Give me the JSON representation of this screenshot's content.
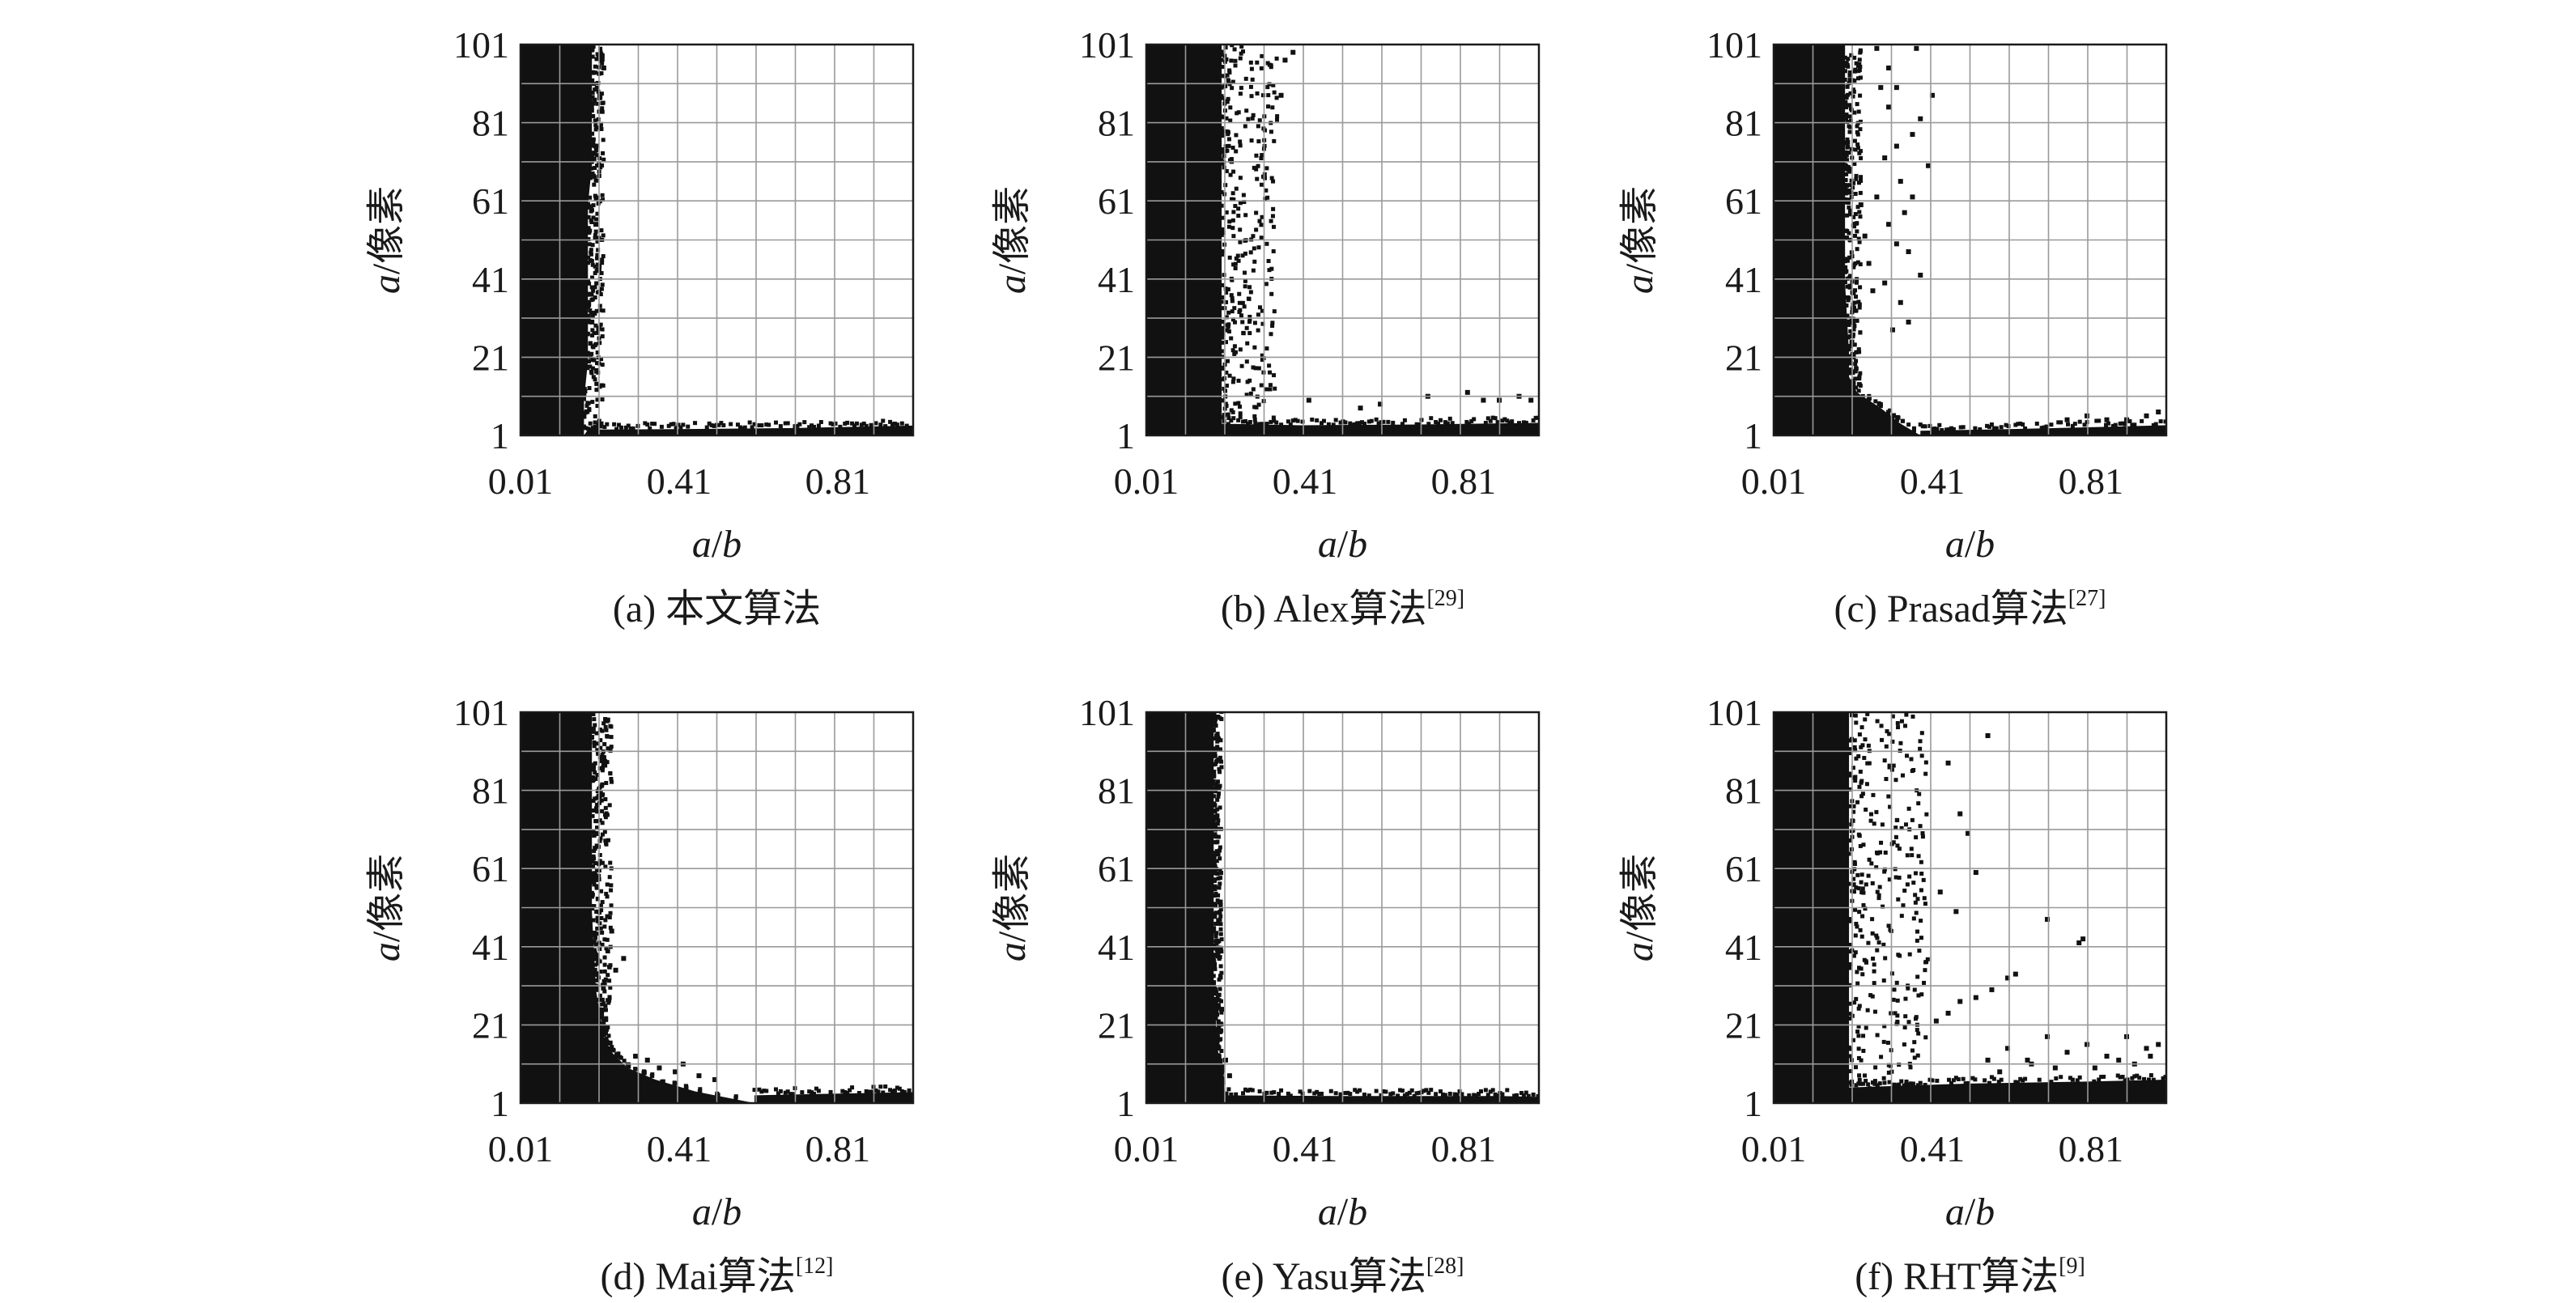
{
  "figure": {
    "colors": {
      "frame": "#1a1a1a",
      "grid": "#9a9a9a",
      "points": "#111111",
      "background": "#ffffff"
    }
  },
  "chart_data": [
    {
      "type": "scatter",
      "panel": "a",
      "caption": "(a) 本文算法",
      "caption_ref": "",
      "xlabel_var": "a",
      "xlabel_rest": "/b",
      "ylabel_var": "a",
      "ylabel_rest": "/像素",
      "xticks": [
        "0.01",
        "0.41",
        "0.81"
      ],
      "yticks": [
        "1",
        "21",
        "41",
        "61",
        "81",
        "101"
      ],
      "xlim": [
        0.01,
        1.0
      ],
      "ylim": [
        1,
        101
      ],
      "grid": true,
      "dense_region": {
        "boundary": [
          [
            1,
            0.17
          ],
          [
            10,
            0.17
          ],
          [
            20,
            0.18
          ],
          [
            30,
            0.18
          ],
          [
            40,
            0.18
          ],
          [
            50,
            0.18
          ],
          [
            60,
            0.18
          ],
          [
            70,
            0.19
          ],
          [
            80,
            0.19
          ],
          [
            90,
            0.19
          ],
          [
            101,
            0.19
          ]
        ],
        "floor": [
          [
            0.18,
            2.5
          ],
          [
            0.4,
            2.6
          ],
          [
            0.7,
            2.9
          ],
          [
            1.0,
            3.5
          ]
        ]
      },
      "scatter_band": {
        "x0": 0.18,
        "x1": 0.22,
        "density": 0.3
      },
      "sparse_points": [
        [
          0.2,
          75
        ],
        [
          0.22,
          95
        ],
        [
          0.2,
          55
        ],
        [
          0.19,
          30
        ],
        [
          0.21,
          88
        ]
      ]
    },
    {
      "type": "scatter",
      "panel": "b",
      "caption": "(b) Alex算法",
      "caption_ref": "[29]",
      "xlabel_var": "a",
      "xlabel_rest": "/b",
      "ylabel_var": "a",
      "ylabel_rest": "/像素",
      "xticks": [
        "0.01",
        "0.41",
        "0.81"
      ],
      "yticks": [
        "1",
        "21",
        "41",
        "61",
        "81",
        "101"
      ],
      "xlim": [
        0.01,
        1.0
      ],
      "ylim": [
        1,
        101
      ],
      "grid": true,
      "dense_region": {
        "boundary": [
          [
            1,
            0.2
          ],
          [
            10,
            0.2
          ],
          [
            20,
            0.2
          ],
          [
            30,
            0.2
          ],
          [
            40,
            0.2
          ],
          [
            50,
            0.2
          ],
          [
            60,
            0.2
          ],
          [
            70,
            0.2
          ],
          [
            80,
            0.2
          ],
          [
            90,
            0.2
          ],
          [
            101,
            0.2
          ]
        ],
        "floor": [
          [
            0.2,
            4
          ],
          [
            0.4,
            3.6
          ],
          [
            0.7,
            3.8
          ],
          [
            1.0,
            4.2
          ]
        ]
      },
      "scatter_band": {
        "x0": 0.2,
        "x1": 0.34,
        "density": 0.45
      },
      "sparse_points": [
        [
          0.42,
          10
        ],
        [
          0.55,
          8
        ],
        [
          0.6,
          9
        ],
        [
          0.72,
          11
        ],
        [
          0.82,
          12
        ],
        [
          0.86,
          10
        ],
        [
          0.9,
          10
        ],
        [
          0.95,
          11
        ],
        [
          0.98,
          10
        ],
        [
          0.36,
          97
        ],
        [
          0.38,
          99
        ],
        [
          0.35,
          88
        ]
      ]
    },
    {
      "type": "scatter",
      "panel": "c",
      "caption": "(c) Prasad算法",
      "caption_ref": "[27]",
      "xlabel_var": "a",
      "xlabel_rest": "/b",
      "ylabel_var": "a",
      "ylabel_rest": "/像素",
      "xticks": [
        "0.01",
        "0.41",
        "0.81"
      ],
      "yticks": [
        "1",
        "21",
        "41",
        "61",
        "81",
        "101"
      ],
      "xlim": [
        0.01,
        1.0
      ],
      "ylim": [
        1,
        101
      ],
      "grid": true,
      "dense_region": {
        "boundary": [
          [
            1,
            0.38
          ],
          [
            4,
            0.33
          ],
          [
            8,
            0.28
          ],
          [
            12,
            0.22
          ],
          [
            16,
            0.2
          ],
          [
            22,
            0.2
          ],
          [
            40,
            0.19
          ],
          [
            60,
            0.19
          ],
          [
            80,
            0.19
          ],
          [
            101,
            0.19
          ]
        ],
        "floor": [
          [
            0.38,
            2.2
          ],
          [
            0.6,
            2.6
          ],
          [
            0.85,
            3.2
          ],
          [
            1.0,
            3.6
          ]
        ]
      },
      "scatter_band": {
        "x0": 0.19,
        "x1": 0.23,
        "density": 0.3
      },
      "sparse_points": [
        [
          0.25,
          45
        ],
        [
          0.27,
          62
        ],
        [
          0.29,
          72
        ],
        [
          0.3,
          55
        ],
        [
          0.3,
          85
        ],
        [
          0.32,
          90
        ],
        [
          0.33,
          35
        ],
        [
          0.35,
          48
        ],
        [
          0.36,
          78
        ],
        [
          0.37,
          100
        ],
        [
          0.33,
          66
        ],
        [
          0.28,
          90
        ],
        [
          0.31,
          28
        ],
        [
          0.34,
          58
        ],
        [
          0.26,
          38
        ],
        [
          0.38,
          82
        ],
        [
          0.4,
          70
        ],
        [
          0.27,
          100
        ],
        [
          0.24,
          52
        ],
        [
          0.29,
          40
        ],
        [
          0.36,
          62
        ],
        [
          0.32,
          75
        ],
        [
          0.3,
          95
        ],
        [
          0.35,
          30
        ],
        [
          0.41,
          88
        ],
        [
          0.23,
          60
        ],
        [
          0.38,
          42
        ],
        [
          0.32,
          50
        ],
        [
          0.8,
          6
        ],
        [
          0.85,
          5
        ],
        [
          0.9,
          5
        ],
        [
          0.95,
          6
        ],
        [
          0.98,
          7
        ],
        [
          0.75,
          5
        ]
      ]
    },
    {
      "type": "scatter",
      "panel": "d",
      "caption": "(d) Mai算法",
      "caption_ref": "[12]",
      "xlabel_var": "a",
      "xlabel_rest": "/b",
      "ylabel_var": "a",
      "ylabel_rest": "/像素",
      "xticks": [
        "0.01",
        "0.41",
        "0.81"
      ],
      "yticks": [
        "1",
        "21",
        "41",
        "61",
        "81",
        "101"
      ],
      "xlim": [
        0.01,
        1.0
      ],
      "ylim": [
        1,
        101
      ],
      "grid": true,
      "dense_region": {
        "boundary": [
          [
            1,
            0.6
          ],
          [
            4,
            0.45
          ],
          [
            7,
            0.35
          ],
          [
            10,
            0.28
          ],
          [
            14,
            0.24
          ],
          [
            18,
            0.22
          ],
          [
            30,
            0.2
          ],
          [
            50,
            0.19
          ],
          [
            70,
            0.19
          ],
          [
            101,
            0.19
          ]
        ],
        "floor": [
          [
            0.6,
            3
          ],
          [
            0.8,
            3.4
          ],
          [
            1.0,
            3.8
          ]
        ]
      },
      "scatter_band": {
        "x0": 0.19,
        "x1": 0.24,
        "density": 0.35
      },
      "sparse_points": [
        [
          0.3,
          13
        ],
        [
          0.33,
          12
        ],
        [
          0.36,
          10
        ],
        [
          0.4,
          9
        ],
        [
          0.23,
          99
        ],
        [
          0.22,
          88
        ],
        [
          0.24,
          45
        ],
        [
          0.25,
          35
        ],
        [
          0.27,
          38
        ],
        [
          0.42,
          11
        ],
        [
          0.46,
          8
        ],
        [
          0.5,
          7
        ]
      ]
    },
    {
      "type": "scatter",
      "panel": "e",
      "caption": "(e) Yasu算法",
      "caption_ref": "[28]",
      "xlabel_var": "a",
      "xlabel_rest": "/b",
      "ylabel_var": "a",
      "ylabel_rest": "/像素",
      "xticks": [
        "0.01",
        "0.41",
        "0.81"
      ],
      "yticks": [
        "1",
        "21",
        "41",
        "61",
        "81",
        "101"
      ],
      "xlim": [
        0.01,
        1.0
      ],
      "ylim": [
        1,
        101
      ],
      "grid": true,
      "dense_region": {
        "boundary": [
          [
            1,
            0.2
          ],
          [
            8,
            0.2
          ],
          [
            15,
            0.19
          ],
          [
            30,
            0.18
          ],
          [
            50,
            0.18
          ],
          [
            70,
            0.18
          ],
          [
            90,
            0.18
          ],
          [
            101,
            0.18
          ]
        ],
        "floor": [
          [
            0.2,
            3
          ],
          [
            0.5,
            2.8
          ],
          [
            0.9,
            2.8
          ],
          [
            1.0,
            2.6
          ]
        ]
      },
      "scatter_band": {
        "x0": 0.17,
        "x1": 0.2,
        "density": 0.3
      },
      "sparse_points": [
        [
          0.21,
          12
        ],
        [
          0.22,
          8
        ],
        [
          0.2,
          25
        ]
      ]
    },
    {
      "type": "scatter",
      "panel": "f",
      "caption": "(f) RHT算法",
      "caption_ref": "[9]",
      "xlabel_var": "a",
      "xlabel_rest": "/b",
      "ylabel_var": "a",
      "ylabel_rest": "/像素",
      "xticks": [
        "0.01",
        "0.41",
        "0.81"
      ],
      "yticks": [
        "1",
        "21",
        "41",
        "61",
        "81",
        "101"
      ],
      "xlim": [
        0.01,
        1.0
      ],
      "ylim": [
        1,
        101
      ],
      "grid": true,
      "dense_region": {
        "boundary": [
          [
            1,
            0.2
          ],
          [
            10,
            0.2
          ],
          [
            20,
            0.2
          ],
          [
            40,
            0.2
          ],
          [
            60,
            0.2
          ],
          [
            80,
            0.2
          ],
          [
            101,
            0.2
          ]
        ],
        "floor": [
          [
            0.2,
            5
          ],
          [
            0.5,
            6
          ],
          [
            0.8,
            6.5
          ],
          [
            1.0,
            7
          ]
        ]
      },
      "scatter_band": {
        "x0": 0.2,
        "x1": 0.4,
        "density": 0.4
      },
      "sparse_points": [
        [
          0.42,
          22
        ],
        [
          0.45,
          24
        ],
        [
          0.48,
          27
        ],
        [
          0.52,
          28
        ],
        [
          0.56,
          30
        ],
        [
          0.6,
          33
        ],
        [
          0.62,
          34
        ],
        [
          0.7,
          48
        ],
        [
          0.78,
          42
        ],
        [
          0.79,
          43
        ],
        [
          0.5,
          70
        ],
        [
          0.55,
          95
        ],
        [
          0.45,
          88
        ],
        [
          0.48,
          75
        ],
        [
          0.52,
          60
        ],
        [
          0.43,
          55
        ],
        [
          0.47,
          50
        ],
        [
          0.6,
          15
        ],
        [
          0.65,
          12
        ],
        [
          0.7,
          18
        ],
        [
          0.75,
          14
        ],
        [
          0.8,
          16
        ],
        [
          0.85,
          13
        ],
        [
          0.9,
          18
        ],
        [
          0.95,
          15
        ],
        [
          0.98,
          16
        ],
        [
          0.88,
          12
        ],
        [
          0.72,
          10
        ],
        [
          0.58,
          9
        ],
        [
          0.92,
          11
        ],
        [
          0.96,
          13
        ],
        [
          0.82,
          10
        ],
        [
          0.66,
          11
        ],
        [
          0.55,
          12
        ]
      ]
    }
  ]
}
